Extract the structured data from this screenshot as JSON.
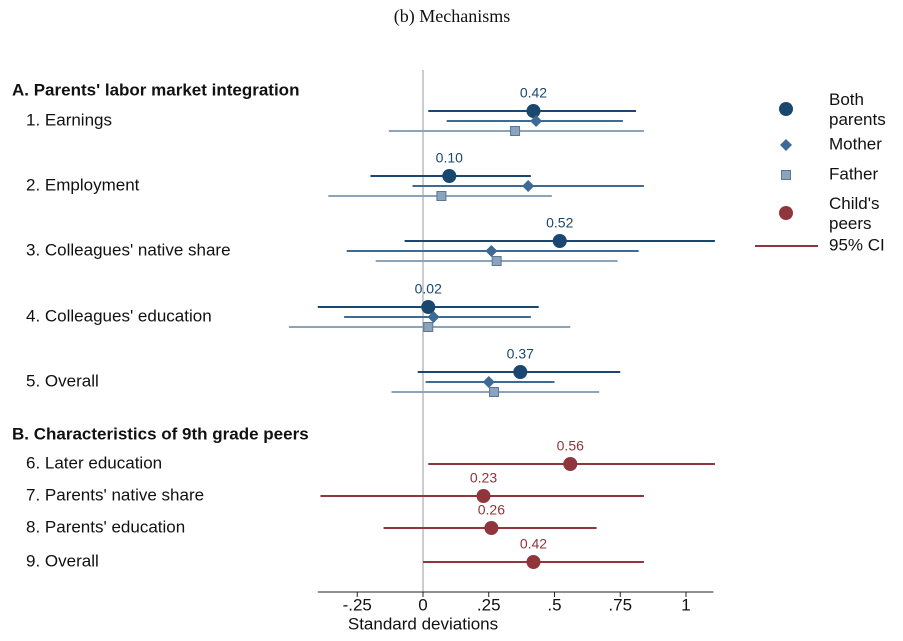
{
  "chart_data": {
    "type": "coefplot",
    "title": "(b) Mechanisms",
    "x_label": "Standard deviations",
    "sections": [
      {
        "title": "A. Parents' labor market integration",
        "categories": [
          "1. Earnings",
          "2. Employment",
          "3. Colleagues' native share",
          "4. Colleagues' education",
          "5. Overall"
        ]
      },
      {
        "title": "B. Characteristics of 9th grade peers",
        "categories": [
          "6. Later education",
          "7. Parents' native share",
          "8. Parents' education",
          "9. Overall"
        ]
      }
    ],
    "series": [
      {
        "name": "Both parents",
        "color": "#1a476f",
        "marker": "circle",
        "section": 0,
        "values": [
          0.42,
          0.1,
          0.52,
          0.02,
          0.37
        ],
        "value_labels": [
          "0.42",
          "0.10",
          "0.52",
          "0.02",
          "0.37"
        ],
        "lower": [
          0.02,
          -0.2,
          -0.07,
          -0.4,
          -0.02
        ],
        "upper": [
          0.81,
          0.41,
          1.11,
          0.44,
          0.75
        ]
      },
      {
        "name": "Mother",
        "color": "#3e6a96",
        "marker": "diamond",
        "section": 0,
        "values": [
          0.43,
          0.4,
          0.26,
          0.04,
          0.25
        ],
        "lower": [
          0.09,
          -0.04,
          -0.29,
          -0.3,
          0.01
        ],
        "upper": [
          0.76,
          0.84,
          0.82,
          0.41,
          0.5
        ]
      },
      {
        "name": "Father",
        "color": "#8ba3bb",
        "marker": "square",
        "section": 0,
        "values": [
          0.35,
          0.07,
          0.28,
          0.02,
          0.27
        ],
        "lower": [
          -0.13,
          -0.36,
          -0.18,
          -0.51,
          -0.12
        ],
        "upper": [
          0.84,
          0.49,
          0.74,
          0.56,
          0.67
        ]
      },
      {
        "name": "Child's peers",
        "color": "#90353b",
        "marker": "circle",
        "section": 1,
        "values": [
          0.56,
          0.23,
          0.26,
          0.42
        ],
        "value_labels": [
          "0.56",
          "0.23",
          "0.26",
          "0.42"
        ],
        "lower": [
          0.02,
          -0.39,
          -0.15,
          0.0
        ],
        "upper": [
          1.11,
          0.84,
          0.66,
          0.84
        ]
      }
    ],
    "ci_label": "95% CI",
    "xlim": [
      -0.55,
      1.15
    ],
    "xticks": [
      {
        "value": -0.25,
        "label": "-.25"
      },
      0,
      {
        "value": 0.25,
        "label": ".25"
      },
      {
        "value": 0.5,
        "label": ".5"
      },
      {
        "value": 0.75,
        "label": ".75"
      },
      1
    ]
  }
}
